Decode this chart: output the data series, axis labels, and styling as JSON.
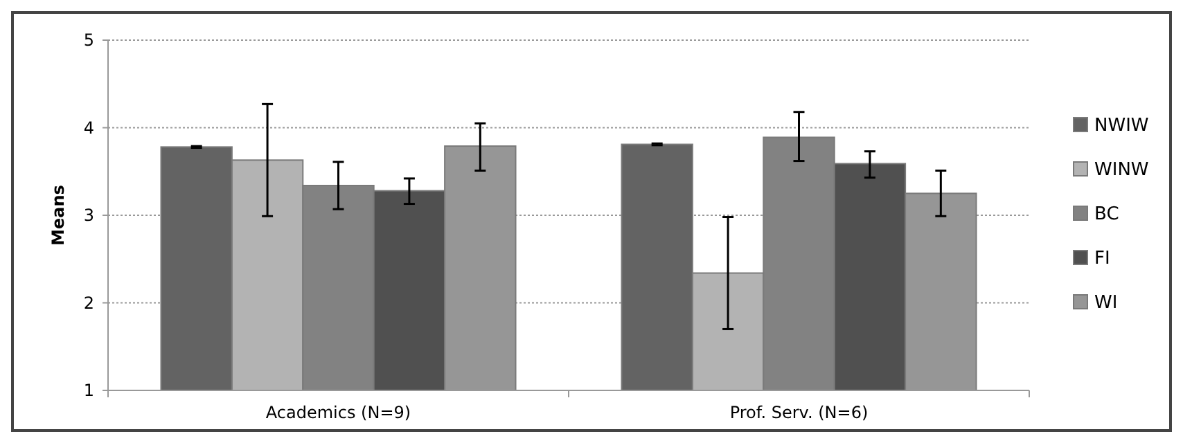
{
  "chart_data": {
    "type": "bar",
    "ylabel": "Means",
    "categories": [
      "Academics (N=9)",
      "Prof. Serv. (N=6)"
    ],
    "series": [
      {
        "name": "NWIW",
        "color": "#636363",
        "values": [
          3.78,
          3.81
        ],
        "errors": [
          0.01,
          0.01
        ]
      },
      {
        "name": "WINW",
        "color": "#b3b3b3",
        "values": [
          3.63,
          2.34
        ],
        "errors": [
          [
            2.99,
            4.27
          ],
          [
            1.7,
            2.98
          ]
        ]
      },
      {
        "name": "BC",
        "color": "#828282",
        "values": [
          3.34,
          3.89
        ],
        "errors": [
          [
            3.07,
            3.61
          ],
          [
            3.62,
            4.18
          ]
        ]
      },
      {
        "name": "FI",
        "color": "#505050",
        "values": [
          3.28,
          3.59
        ],
        "errors": [
          [
            3.13,
            3.42
          ],
          [
            3.43,
            3.73
          ]
        ]
      },
      {
        "name": "WI",
        "color": "#969696",
        "values": [
          3.79,
          3.25
        ],
        "errors": [
          [
            3.51,
            4.05
          ],
          [
            2.99,
            3.51
          ]
        ]
      }
    ],
    "ylim": [
      1,
      5
    ],
    "yticks": [
      1,
      2,
      3,
      4,
      5
    ],
    "grid": "y",
    "legend": "right"
  }
}
